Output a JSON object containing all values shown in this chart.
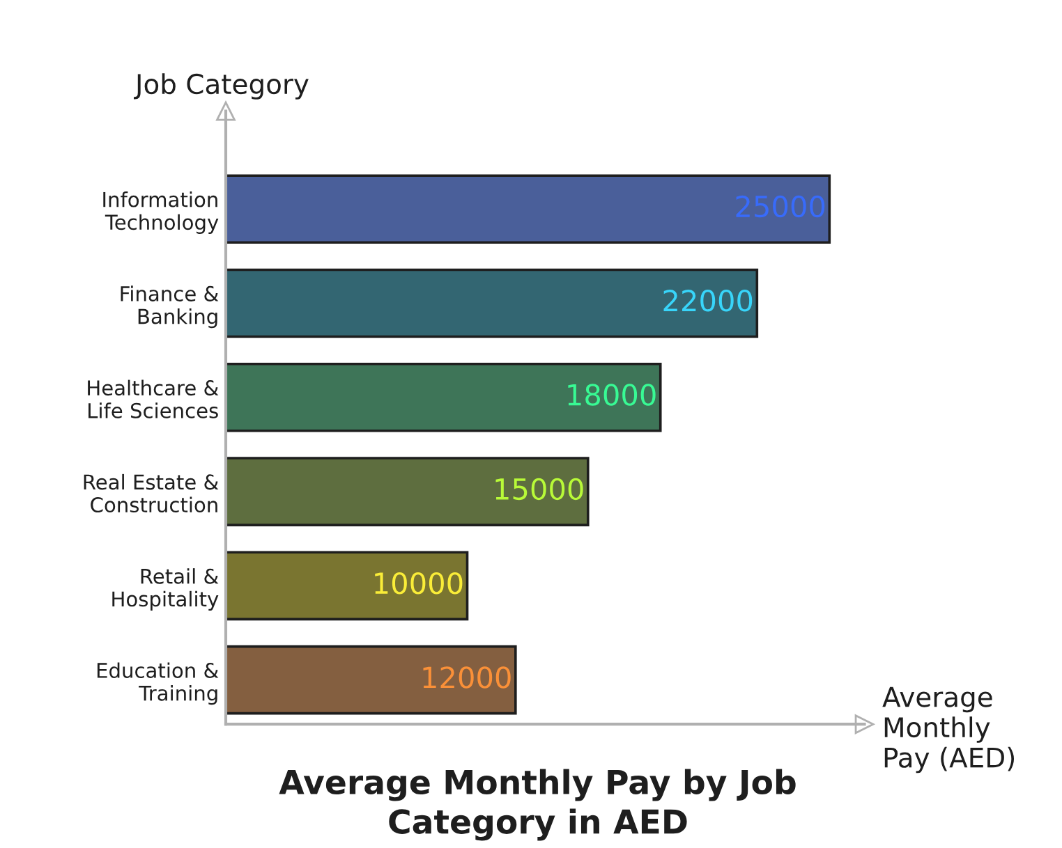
{
  "chart_data": {
    "type": "bar",
    "orientation": "horizontal",
    "title": "Average Monthly Pay by Job\nCategory in AED",
    "xlabel": "Average\nMonthly\nPay (AED)",
    "ylabel": "Job Category",
    "categories": [
      "Information\nTechnology",
      "Finance &\nBanking",
      "Healthcare &\nLife Sciences",
      "Real Estate &\nConstruction",
      "Retail &\nHospitality",
      "Education &\nTraining"
    ],
    "values": [
      25000,
      22000,
      18000,
      15000,
      10000,
      12000
    ],
    "colors": [
      "#4a5f9a",
      "#336672",
      "#3e7558",
      "#5e6e3f",
      "#7a7530",
      "#845f40"
    ],
    "data_labels": true,
    "grid": false,
    "legend": false
  }
}
